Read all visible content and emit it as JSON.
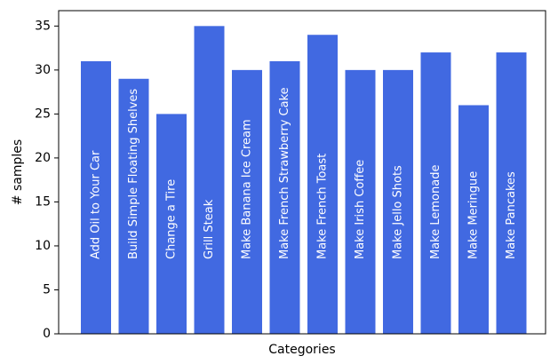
{
  "colors": {
    "bar": "#4169e1",
    "bar_label": "#ffffff",
    "axis": "#000000"
  },
  "chart_data": {
    "type": "bar",
    "categories": [
      "Add Oil to Your Car",
      "Build Simple Floating Shelves",
      "Change a Tire",
      "Grill Steak",
      "Make Banana Ice Cream",
      "Make French Strawberry Cake",
      "Make French Toast",
      "Make Irish Coffee",
      "Make Jello Shots",
      "Make Lemonade",
      "Make Meringue",
      "Make Pancakes"
    ],
    "values": [
      31,
      29,
      25,
      35,
      30,
      31,
      34,
      30,
      30,
      32,
      26,
      32
    ],
    "xlabel": "Categories",
    "ylabel": "# samples",
    "ylim": [
      0,
      36.75
    ],
    "yticks": [
      0,
      5,
      10,
      15,
      20,
      25,
      30,
      35
    ],
    "grid": false,
    "category_labels_inside_bars": true
  }
}
